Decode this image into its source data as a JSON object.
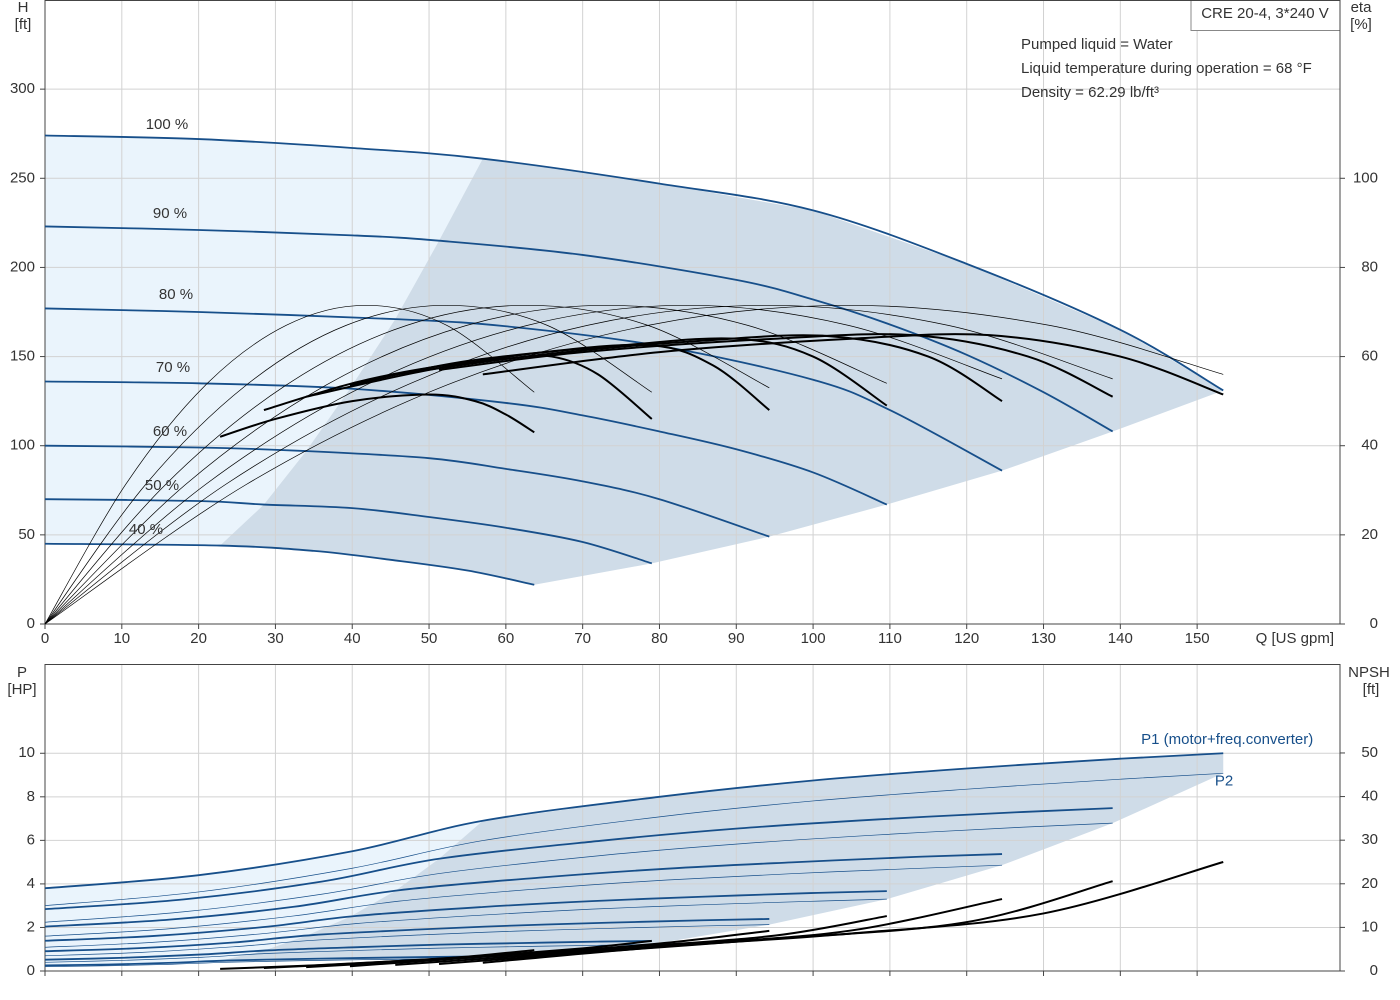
{
  "chart_data": [
    {
      "type": "line",
      "model": "CRE 20-4, 3*240 V",
      "annotations": [
        "Pumped liquid = Water",
        "Liquid temperature during operation = 68 °F",
        "Density = 62.29 lb/ft³"
      ],
      "x_label": "Q [US gpm]",
      "y_label": "H",
      "y_unit": "[ft]",
      "y2_label": "eta",
      "y2_unit": "[%]",
      "xlim": [
        0,
        168.6
      ],
      "xticks": [
        0,
        10,
        20,
        30,
        40,
        50,
        60,
        70,
        80,
        90,
        100,
        110,
        120,
        130,
        140,
        150
      ],
      "ylim": [
        0,
        350
      ],
      "yticks": [
        0,
        50,
        100,
        150,
        200,
        250,
        300
      ],
      "y2lim": [
        0,
        140
      ],
      "y2ticks": [
        0,
        20,
        40,
        60,
        80,
        100
      ],
      "grid": true,
      "band_colors": [
        "#eaf4fc",
        "#cfdce8"
      ],
      "series": [
        {
          "name": "100 %",
          "color": "#174f8a",
          "line_style": "thick",
          "x": [
            0,
            20,
            40,
            57,
            80,
            100,
            120,
            140,
            153.4
          ],
          "values": [
            274,
            272,
            267,
            261,
            247,
            232,
            202,
            165,
            131
          ]
        },
        {
          "name": "90 %",
          "color": "#174f8a",
          "line_style": "thick",
          "x": [
            0,
            20,
            40,
            51.3,
            70,
            90,
            100,
            110,
            120,
            130,
            139
          ],
          "values": [
            223,
            221,
            218,
            215,
            207,
            193,
            182,
            168,
            151,
            130,
            108
          ]
        },
        {
          "name": "80 %",
          "color": "#174f8a",
          "line_style": "thick",
          "x": [
            0,
            20,
            45.6,
            60,
            80,
            100,
            110,
            124.6
          ],
          "values": [
            177,
            175,
            171,
            167,
            156,
            137,
            120,
            86
          ]
        },
        {
          "name": "70 %",
          "color": "#174f8a",
          "line_style": "thick",
          "x": [
            0,
            20,
            39.7,
            60,
            70,
            80,
            90,
            100,
            109.6
          ],
          "values": [
            136,
            135,
            132,
            124,
            117,
            108,
            98,
            85,
            67
          ]
        },
        {
          "name": "60 %",
          "color": "#174f8a",
          "line_style": "thick",
          "x": [
            0,
            20,
            34,
            50,
            60,
            70,
            80,
            94.3
          ],
          "values": [
            100,
            99,
            97,
            93,
            87,
            80,
            70,
            49
          ]
        },
        {
          "name": "50 %",
          "color": "#174f8a",
          "line_style": "thick",
          "x": [
            0,
            20,
            28.5,
            40,
            50,
            60,
            70,
            79
          ],
          "values": [
            70,
            69,
            67,
            65,
            60,
            54,
            46,
            34
          ]
        },
        {
          "name": "40 %",
          "color": "#174f8a",
          "line_style": "thick",
          "x": [
            0,
            22.8,
            35,
            45,
            55,
            63.7
          ],
          "values": [
            45,
            44,
            41,
            36,
            30,
            22
          ]
        },
        {
          "color": "#000000",
          "line_style": "thin",
          "axis": "y2",
          "x": [
            0,
            26.2,
            52.3,
            78.5,
            104.6,
            130.8,
            153.4
          ],
          "values": [
            0,
            31.3,
            53.6,
            67,
            71.5,
            67,
            56
          ]
        },
        {
          "color": "#000000",
          "line_style": "thin",
          "axis": "y2",
          "x": [
            0,
            23.5,
            47.1,
            70.6,
            94.1,
            117.6,
            139
          ],
          "values": [
            0,
            31.3,
            53.6,
            67,
            71.5,
            67,
            55
          ]
        },
        {
          "color": "#000000",
          "line_style": "thin",
          "axis": "y2",
          "x": [
            0,
            20.9,
            41.8,
            62.8,
            83.7,
            104.6,
            124.6
          ],
          "values": [
            0,
            31.3,
            53.6,
            67,
            71.5,
            67,
            55
          ]
        },
        {
          "color": "#000000",
          "line_style": "thin",
          "axis": "y2",
          "x": [
            0,
            18.3,
            36.6,
            54.9,
            73.2,
            91.5,
            109.6
          ],
          "values": [
            0,
            31.3,
            53.6,
            67,
            71.5,
            67,
            54
          ]
        },
        {
          "color": "#000000",
          "line_style": "thin",
          "axis": "y2",
          "x": [
            0,
            15.7,
            31.4,
            47.1,
            62.8,
            78.5,
            94.3
          ],
          "values": [
            0,
            31.3,
            53.6,
            67,
            71.5,
            67,
            53
          ]
        },
        {
          "color": "#000000",
          "line_style": "thin",
          "axis": "y2",
          "x": [
            0,
            13.1,
            26.2,
            39.2,
            52.3,
            65.4,
            79
          ],
          "values": [
            0,
            31.3,
            53.6,
            67,
            71.5,
            67,
            52
          ]
        },
        {
          "color": "#000000",
          "line_style": "thin",
          "axis": "y2",
          "x": [
            0,
            10.5,
            20.9,
            31.4,
            41.8,
            52.3,
            63.7
          ],
          "values": [
            0,
            31.3,
            53.6,
            67,
            71.5,
            67,
            52
          ]
        },
        {
          "color": "#000000",
          "line_style": "thick",
          "axis": "y2",
          "x": [
            57,
            80,
            105,
            123,
            140,
            153.4
          ],
          "values": [
            56,
            61,
            64,
            64.8,
            60,
            51.5
          ]
        },
        {
          "color": "#000000",
          "line_style": "thick",
          "axis": "y2",
          "x": [
            51.3,
            70,
            95,
            113,
            128,
            139
          ],
          "values": [
            57,
            61,
            64,
            64.8,
            60,
            51
          ]
        },
        {
          "color": "#000000",
          "line_style": "thick",
          "axis": "y2",
          "x": [
            45.6,
            65,
            85,
            102,
            115,
            124.6
          ],
          "values": [
            56,
            60.5,
            63.5,
            64.6,
            60,
            50
          ]
        },
        {
          "color": "#000000",
          "line_style": "thick",
          "axis": "y2",
          "x": [
            39.7,
            55,
            75,
            90,
            100,
            109.6
          ],
          "values": [
            53.6,
            59,
            62.5,
            64,
            60,
            49
          ]
        },
        {
          "color": "#000000",
          "line_style": "thick",
          "axis": "y2",
          "x": [
            34,
            50,
            65,
            79,
            87,
            94.3
          ],
          "values": [
            51,
            57,
            61,
            62.5,
            58,
            48
          ]
        },
        {
          "color": "#000000",
          "line_style": "thick",
          "axis": "y2",
          "x": [
            28.5,
            40,
            50,
            60,
            66,
            72,
            79
          ],
          "values": [
            48,
            54,
            57.5,
            59.5,
            60,
            56,
            46
          ]
        },
        {
          "color": "#000000",
          "line_style": "thick",
          "axis": "y2",
          "x": [
            22.8,
            30,
            40,
            50,
            56,
            60,
            63.7
          ],
          "values": [
            42,
            46,
            50,
            51.5,
            50,
            47,
            43
          ]
        }
      ]
    },
    {
      "type": "line",
      "y_label": "P",
      "y_unit": "[HP]",
      "y2_label": "NPSH",
      "y2_unit": "[ft]",
      "xlim": [
        0,
        168.6
      ],
      "ylim": [
        0,
        14.1
      ],
      "yticks": [
        0,
        2,
        4,
        6,
        8,
        10
      ],
      "y2lim": [
        0,
        70.4
      ],
      "y2ticks": [
        0,
        10,
        20,
        30,
        40,
        50
      ],
      "grid": true,
      "band_colors": [
        "#eaf4fc",
        "#cfdce8"
      ],
      "series": [
        {
          "name": "P1 (motor+freq.converter)",
          "color": "#174f8a",
          "line_style": "thick",
          "x": [
            0,
            20,
            40,
            57,
            80,
            100,
            120,
            140,
            153.4
          ],
          "values": [
            3.8,
            4.4,
            5.5,
            6.9,
            8.0,
            8.75,
            9.3,
            9.75,
            10.0
          ]
        },
        {
          "color": "#174f8a",
          "line_style": "thick",
          "x": [
            0,
            18.1,
            36.1,
            51.4,
            72.3,
            90.4,
            108.4,
            126.5,
            139
          ],
          "values": [
            2.84,
            3.29,
            4.11,
            5.16,
            5.98,
            6.55,
            6.96,
            7.29,
            7.48
          ]
        },
        {
          "color": "#174f8a",
          "line_style": "thick",
          "x": [
            0,
            16.2,
            32.4,
            46.1,
            64.8,
            81,
            97.2,
            113.4,
            124.6
          ],
          "values": [
            2.04,
            2.36,
            2.95,
            3.71,
            4.3,
            4.7,
            4.99,
            5.24,
            5.37
          ]
        },
        {
          "color": "#174f8a",
          "line_style": "thick",
          "x": [
            0,
            14.2,
            28.5,
            40.6,
            57,
            71.2,
            85.5,
            99.7,
            109.6
          ],
          "values": [
            1.39,
            1.61,
            2.02,
            2.53,
            2.94,
            3.21,
            3.41,
            3.58,
            3.67
          ]
        },
        {
          "color": "#174f8a",
          "line_style": "thick",
          "x": [
            0,
            12.3,
            24.5,
            34.9,
            49,
            61.3,
            73.6,
            85.8,
            94.3
          ],
          "values": [
            0.91,
            1.05,
            1.31,
            1.65,
            1.91,
            2.09,
            2.22,
            2.33,
            2.39
          ]
        },
        {
          "color": "#174f8a",
          "line_style": "thick",
          "x": [
            0,
            10.3,
            20.5,
            29.2,
            41.1,
            51.4,
            61.6,
            71.9,
            79
          ],
          "values": [
            0.52,
            0.61,
            0.76,
            0.95,
            1.1,
            1.21,
            1.28,
            1.35,
            1.38
          ]
        },
        {
          "color": "#174f8a",
          "line_style": "thick",
          "x": [
            0,
            8.3,
            16.6,
            23.6,
            33.1,
            41.4,
            49.7,
            58,
            63.7
          ],
          "values": [
            0.26,
            0.3,
            0.38,
            0.48,
            0.55,
            0.6,
            0.64,
            0.67,
            0.69
          ]
        },
        {
          "name": "P2",
          "color": "#174f8a",
          "line_style": "thin",
          "x": [
            0,
            20,
            40,
            57,
            80,
            100,
            120,
            140,
            153.4
          ],
          "values": [
            3.0,
            3.63,
            4.72,
            5.99,
            7.08,
            7.81,
            8.35,
            8.81,
            9.08
          ]
        },
        {
          "color": "#174f8a",
          "line_style": "thin",
          "x": [
            0,
            18.1,
            36.1,
            51.4,
            72.3,
            90.4,
            108.4,
            126.5,
            139
          ],
          "values": [
            2.24,
            2.72,
            3.53,
            4.48,
            5.3,
            5.84,
            6.25,
            6.59,
            6.79
          ]
        },
        {
          "color": "#174f8a",
          "line_style": "thin",
          "x": [
            0,
            16.2,
            32.4,
            46.1,
            64.8,
            81,
            97.2,
            113.4,
            124.6
          ],
          "values": [
            1.6,
            1.94,
            2.53,
            3.21,
            3.79,
            4.18,
            4.47,
            4.71,
            4.86
          ]
        },
        {
          "color": "#174f8a",
          "line_style": "thin",
          "x": [
            0,
            14.2,
            28.5,
            40.6,
            57,
            71.2,
            85.5,
            99.7,
            109.6
          ],
          "values": [
            1.09,
            1.32,
            1.72,
            2.18,
            2.57,
            2.84,
            3.04,
            3.2,
            3.3
          ]
        },
        {
          "color": "#174f8a",
          "line_style": "thin",
          "x": [
            0,
            12.3,
            24.5,
            34.9,
            49,
            61.3,
            73.6,
            85.8,
            94.3
          ],
          "values": [
            0.7,
            0.85,
            1.11,
            1.41,
            1.66,
            1.83,
            1.96,
            2.07,
            2.13
          ]
        },
        {
          "color": "#174f8a",
          "line_style": "thin",
          "x": [
            0,
            10.3,
            20.5,
            29.2,
            41.1,
            51.4,
            61.6,
            71.9,
            79
          ],
          "values": [
            0.4,
            0.49,
            0.63,
            0.81,
            0.95,
            1.05,
            1.12,
            1.18,
            1.22
          ]
        },
        {
          "color": "#174f8a",
          "line_style": "thin",
          "x": [
            0,
            8.3,
            16.6,
            23.6,
            33.1,
            41.4,
            49.7,
            58,
            63.7
          ],
          "values": [
            0.2,
            0.24,
            0.31,
            0.4,
            0.47,
            0.52,
            0.55,
            0.58,
            0.6
          ]
        },
        {
          "color": "#000000",
          "line_style": "thick",
          "axis": "y2",
          "x": [
            57,
            80,
            105,
            130,
            153.4
          ],
          "values": [
            1.9,
            5.5,
            8.6,
            13.2,
            25
          ]
        },
        {
          "color": "#000000",
          "line_style": "thick",
          "axis": "y2",
          "x": [
            51.3,
            75,
            95,
            120,
            139
          ],
          "values": [
            1.6,
            4.8,
            7.4,
            11.2,
            20.6
          ]
        },
        {
          "color": "#000000",
          "line_style": "thick",
          "axis": "y2",
          "x": [
            45.6,
            65,
            85,
            105,
            124.6
          ],
          "values": [
            1.4,
            3.8,
            6.3,
            9.3,
            16.5
          ]
        },
        {
          "color": "#000000",
          "line_style": "thick",
          "axis": "y2",
          "x": [
            39.7,
            55,
            75,
            95,
            109.6
          ],
          "values": [
            1.1,
            3.0,
            5.4,
            8.1,
            12.6
          ]
        },
        {
          "color": "#000000",
          "line_style": "thick",
          "axis": "y2",
          "x": [
            34,
            50,
            65,
            80,
            94.3
          ],
          "values": [
            0.9,
            2.5,
            4.3,
            6.3,
            9.2
          ]
        },
        {
          "color": "#000000",
          "line_style": "thick",
          "axis": "y2",
          "x": [
            28.5,
            40,
            55,
            70,
            79
          ],
          "values": [
            0.7,
            1.7,
            3.2,
            5.2,
            6.9
          ]
        },
        {
          "color": "#000000",
          "line_style": "thick",
          "axis": "y2",
          "x": [
            22.8,
            35,
            45,
            55,
            63.7
          ],
          "values": [
            0.5,
            1.3,
            2.2,
            3.3,
            4.8
          ]
        }
      ]
    }
  ]
}
